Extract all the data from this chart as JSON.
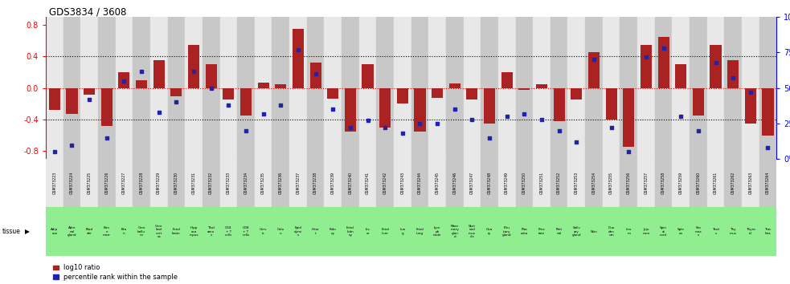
{
  "title": "GDS3834 / 3608",
  "gsm_ids": [
    "GSM373223",
    "GSM373224",
    "GSM373225",
    "GSM373226",
    "GSM373227",
    "GSM373228",
    "GSM373229",
    "GSM373230",
    "GSM373231",
    "GSM373232",
    "GSM373233",
    "GSM373234",
    "GSM373235",
    "GSM373236",
    "GSM373237",
    "GSM373238",
    "GSM373239",
    "GSM373240",
    "GSM373241",
    "GSM373242",
    "GSM373243",
    "GSM373244",
    "GSM373245",
    "GSM373246",
    "GSM373247",
    "GSM373248",
    "GSM373249",
    "GSM373250",
    "GSM373251",
    "GSM373252",
    "GSM373253",
    "GSM373254",
    "GSM373255",
    "GSM373256",
    "GSM373257",
    "GSM373258",
    "GSM373259",
    "GSM373260",
    "GSM373261",
    "GSM373262",
    "GSM373263",
    "GSM373264"
  ],
  "tissues": [
    "Adip\nose",
    "Adre\nnal\ngland",
    "Blad\nder",
    "Bon\ne\nmarr",
    "Bra\nin",
    "Cere\nbellu\nm",
    "Cere\nbral\ncort\nex",
    "Fetal\nbrain",
    "Hipp\noca\nmpus",
    "Thal\namu\ns",
    "CD4\n+ T\ncells",
    "CD8\n+ T\ncells",
    "Cerv\nix",
    "Colo\nn",
    "Epid\ndymi\ns",
    "Hear\nt",
    "Kidn\ney",
    "Fetal\nkidn\ney",
    "Liv\ner",
    "Fetal\nliver",
    "Lun\ng",
    "Fetal\nlung",
    "Lym\nph\nnode",
    "Mam\nmary\nglan\nd",
    "Sket\netal\nmus\ncle",
    "Ova\nry",
    "Pitu\nitary\ngland",
    "Plac\nenta",
    "Pros\ntate",
    "Reti\nnal",
    "Saliv\nary\ngland",
    "Skin",
    "Duo\nden\num",
    "Ileu\nm",
    "Jeju\nnum",
    "Spin\nal\ncord",
    "Sple\nen",
    "Sto\nmac\ns",
    "Testi\ns",
    "Thy\nmus",
    "Thyro\nid",
    "Trac\nhea"
  ],
  "log10_ratio": [
    -0.28,
    -0.33,
    -0.08,
    -0.48,
    0.2,
    0.1,
    0.35,
    -0.1,
    0.55,
    0.3,
    -0.15,
    -0.35,
    0.07,
    0.05,
    0.75,
    0.32,
    -0.13,
    -0.55,
    0.3,
    -0.5,
    -0.2,
    -0.55,
    -0.12,
    0.06,
    -0.15,
    -0.45,
    0.2,
    -0.02,
    0.05,
    -0.42,
    -0.15,
    0.45,
    -0.4,
    -0.75,
    0.55,
    0.65,
    0.3,
    -0.35,
    0.55,
    0.35,
    -0.45,
    -0.6
  ],
  "percentile": [
    5,
    10,
    42,
    15,
    55,
    62,
    33,
    40,
    62,
    50,
    38,
    20,
    32,
    38,
    77,
    60,
    35,
    22,
    27,
    22,
    18,
    25,
    25,
    35,
    28,
    15,
    30,
    32,
    28,
    20,
    12,
    70,
    22,
    5,
    72,
    78,
    30,
    20,
    68,
    57,
    47,
    8
  ],
  "bar_color": "#aa2222",
  "dot_color": "#2222aa",
  "bg_color_light": "#e8e8e8",
  "bg_color_dark": "#c8c8c8",
  "tissue_bg": "#90ee90",
  "ylim": [
    -0.9,
    0.9
  ],
  "right_ylim": [
    0,
    100
  ],
  "dotted_lines": [
    -0.4,
    0.0,
    0.4
  ],
  "zero_line_color": "red"
}
